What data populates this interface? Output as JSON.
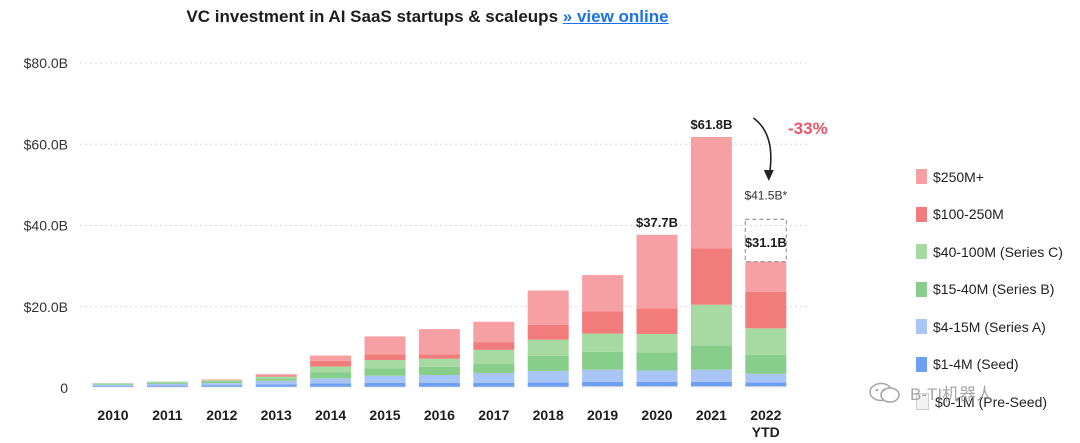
{
  "header": {
    "title": "VC investment in AI SaaS startups & scaleups",
    "link_text": "» view online"
  },
  "colors": {
    "250M+": "#f7a0a3",
    "100-250M": "#f27b7c",
    "40-100M": "#a7d9a3",
    "15-40M": "#88ce8b",
    "4-15M": "#a9c5f5",
    "1-4M": "#6f9ff0",
    "0-1M": "#f2f2f2",
    "arrow": "#222222",
    "delta": "#e8556a"
  },
  "chart_data": {
    "type": "bar",
    "stacked": true,
    "title": "VC investment in AI SaaS startups & scaleups",
    "categories": [
      "2010",
      "2011",
      "2012",
      "2013",
      "2014",
      "2015",
      "2016",
      "2017",
      "2018",
      "2019",
      "2020",
      "2021",
      "2022\nYTD"
    ],
    "ylim": [
      0,
      80
    ],
    "yticks": [
      0,
      20,
      40,
      60,
      80
    ],
    "ytick_labels": [
      "0",
      "$20.0B",
      "$40.0B",
      "$60.0B",
      "$80.0B"
    ],
    "grid": true,
    "series": [
      {
        "name": "$0-1M (Pre-Seed)",
        "key": "0-1M",
        "values": [
          0.3,
          0.3,
          0.3,
          0.3,
          0.3,
          0.3,
          0.3,
          0.3,
          0.3,
          0.4,
          0.4,
          0.4,
          0.4
        ]
      },
      {
        "name": "$1-4M (Seed)",
        "key": "1-4M",
        "values": [
          0.2,
          0.3,
          0.4,
          0.6,
          0.8,
          1.0,
          1.0,
          1.0,
          1.1,
          1.1,
          1.1,
          1.1,
          1.0
        ]
      },
      {
        "name": "$4-15M (Series A)",
        "key": "4-15M",
        "values": [
          0.3,
          0.4,
          0.5,
          0.9,
          1.3,
          1.7,
          1.9,
          2.4,
          2.8,
          3.0,
          2.8,
          3.0,
          2.1
        ]
      },
      {
        "name": "$15-40M (Series B)",
        "key": "15-40M",
        "values": [
          0.2,
          0.3,
          0.4,
          0.6,
          1.5,
          1.8,
          2.0,
          2.2,
          3.7,
          4.4,
          4.5,
          6.0,
          4.7
        ]
      },
      {
        "name": "$40-100M (Series C)",
        "key": "40-100M",
        "values": [
          0.2,
          0.3,
          0.3,
          0.4,
          1.4,
          2.1,
          2.0,
          3.5,
          4.0,
          4.5,
          4.5,
          10.0,
          6.5
        ]
      },
      {
        "name": "$100-250M",
        "key": "100-250M",
        "values": [
          0,
          0,
          0,
          0.3,
          1.4,
          1.4,
          1.1,
          1.9,
          3.7,
          5.5,
          6.3,
          13.9,
          9.0
        ]
      },
      {
        "name": "$250M+",
        "key": "250M+",
        "values": [
          0,
          0,
          0.2,
          0.3,
          1.3,
          4.4,
          6.2,
          5.0,
          8.4,
          8.9,
          18.1,
          27.4,
          7.4
        ]
      }
    ],
    "data_labels": [
      {
        "category": "2020",
        "text": "$37.7B",
        "value": 37.7
      },
      {
        "category": "2021",
        "text": "$61.8B",
        "value": 61.8
      },
      {
        "category": "2022\nYTD",
        "text": "$31.1B",
        "value": 31.1
      }
    ],
    "projection": {
      "category": "2022\nYTD",
      "value": 41.5,
      "text": "$41.5B*"
    },
    "annotation": {
      "text": "-33%"
    }
  },
  "legend": [
    {
      "key": "250M+",
      "label": "$250M+"
    },
    {
      "key": "100-250M",
      "label": "$100-250M"
    },
    {
      "key": "40-100M",
      "label": "$40-100M (Series C)"
    },
    {
      "key": "15-40M",
      "label": "$15-40M (Series B)"
    },
    {
      "key": "4-15M",
      "label": "$4-15M (Series A)"
    },
    {
      "key": "1-4M",
      "label": "$1-4M (Seed)"
    },
    {
      "key": "0-1M",
      "label": "$0-1M (Pre-Seed)"
    }
  ],
  "watermark": {
    "text": "B-TI机器人"
  }
}
